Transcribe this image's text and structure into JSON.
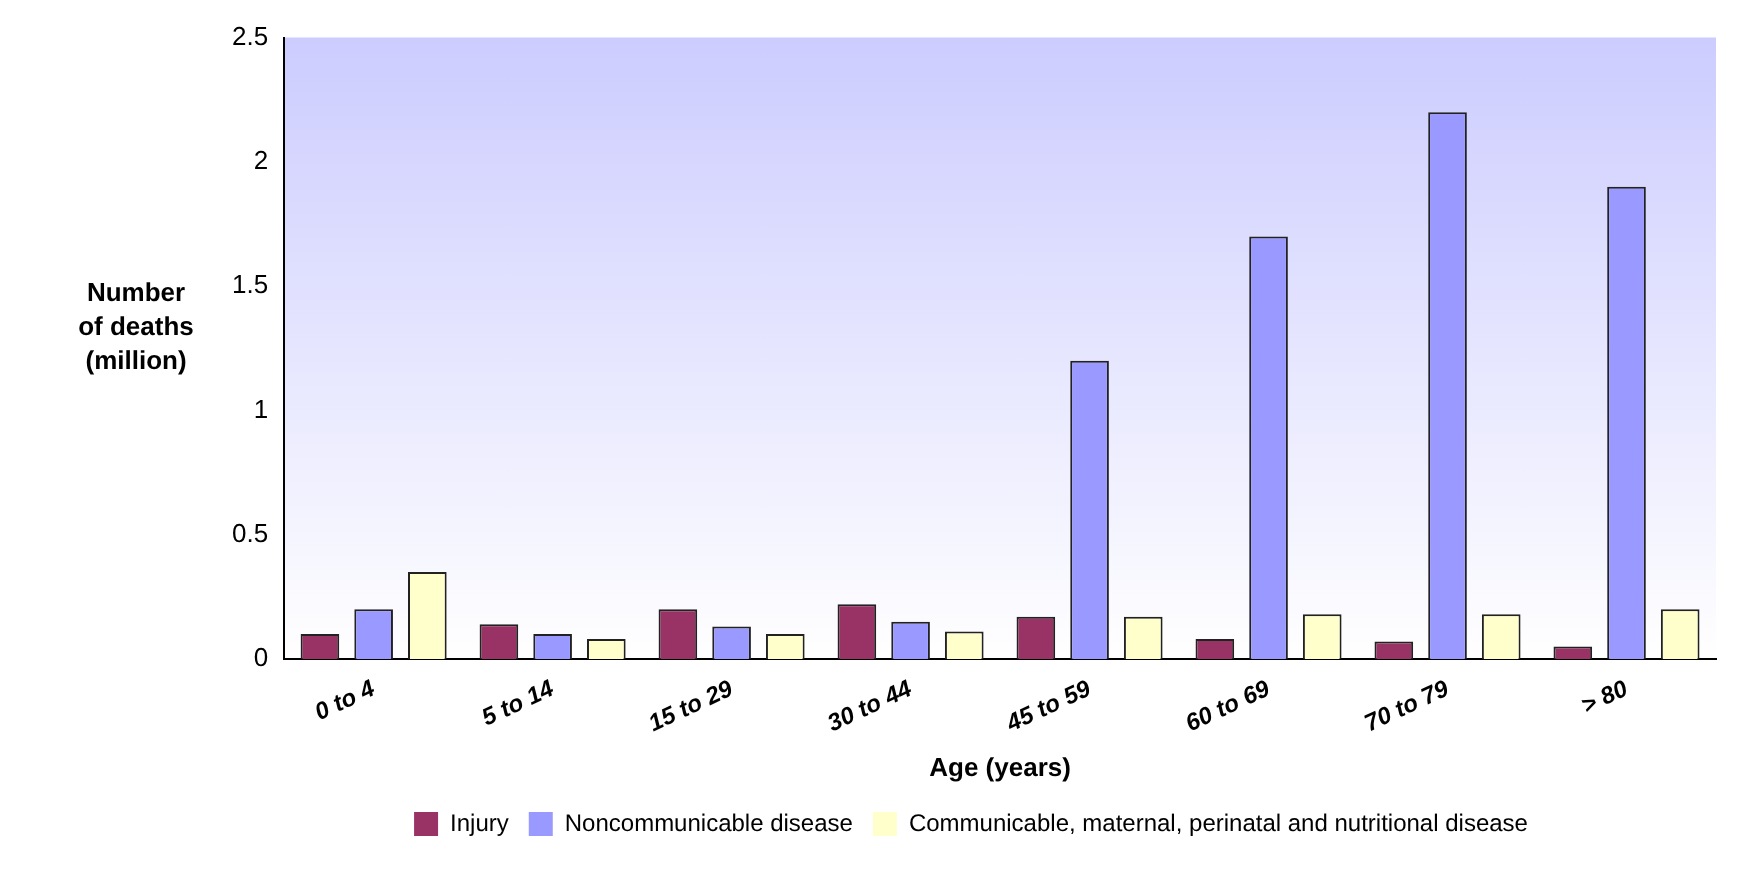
{
  "chart_data": {
    "type": "bar",
    "xlabel": "Age (years)",
    "ylabel": "Number of deaths (million)",
    "categories": [
      "0 to 4",
      "5 to 14",
      "15 to 29",
      "30 to 44",
      "45 to 59",
      "60 to 69",
      "70 to 79",
      "> 80"
    ],
    "series": [
      {
        "name": "Injury",
        "color": "#993366",
        "values": [
          0.1,
          0.14,
          0.2,
          0.22,
          0.17,
          0.08,
          0.07,
          0.05
        ]
      },
      {
        "name": "Noncommunicable disease",
        "color": "#9999ff",
        "values": [
          0.2,
          0.1,
          0.13,
          0.15,
          1.2,
          1.7,
          2.2,
          1.9
        ]
      },
      {
        "name": "Communicable, maternal, perinatal and nutritional disease",
        "color": "#ffffcc",
        "values": [
          0.35,
          0.08,
          0.1,
          0.11,
          0.17,
          0.18,
          0.18,
          0.2
        ]
      }
    ],
    "ylim": [
      0,
      2.5
    ],
    "yticks": [
      0,
      0.5,
      1,
      1.5,
      2,
      2.5
    ],
    "grid": false,
    "legend": "bottom"
  }
}
